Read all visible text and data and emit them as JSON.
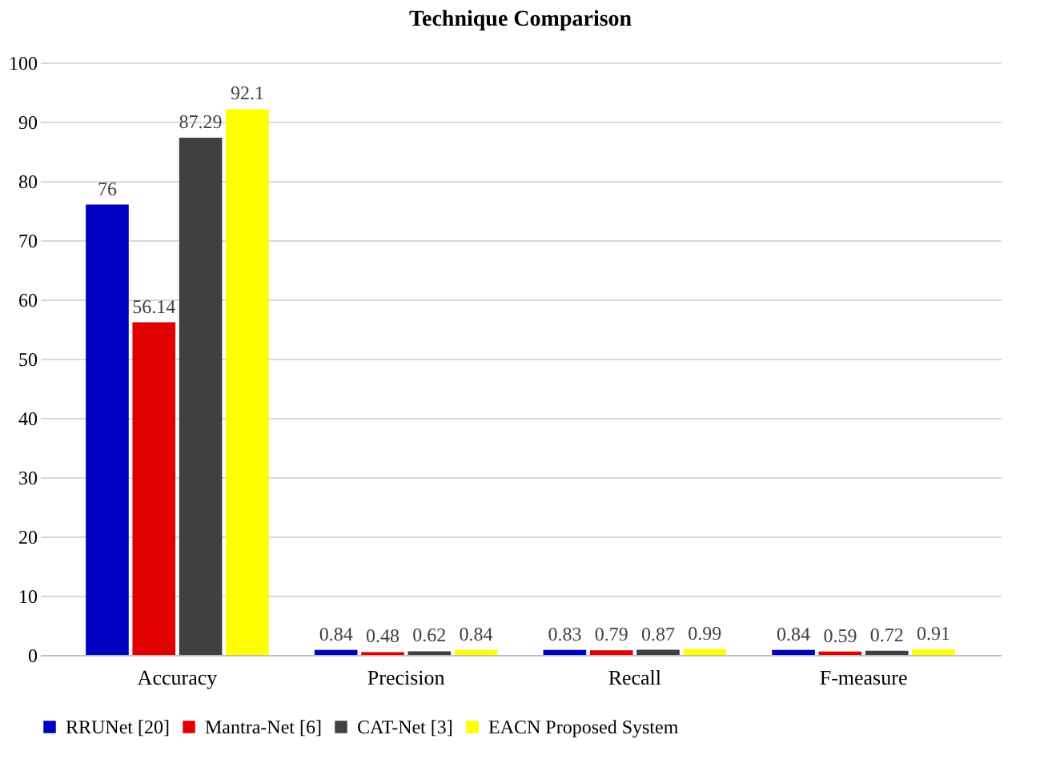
{
  "chart_data": {
    "type": "bar",
    "title": "Technique Comparison",
    "categories": [
      "Accuracy",
      "Precision",
      "Recall",
      "F-measure"
    ],
    "series": [
      {
        "name": "RRUNet [20]",
        "color": "#0000c0",
        "values": [
          76,
          0.84,
          0.83,
          0.84
        ]
      },
      {
        "name": "Mantra-Net [6]",
        "color": "#e00000",
        "values": [
          56.14,
          0.48,
          0.79,
          0.59
        ]
      },
      {
        "name": "CAT-Net [3]",
        "color": "#404040",
        "values": [
          87.29,
          0.62,
          0.87,
          0.72
        ]
      },
      {
        "name": "EACN Proposed System",
        "color": "#ffff00",
        "values": [
          92.1,
          0.84,
          0.99,
          0.91
        ]
      }
    ],
    "ylim": [
      0,
      100
    ],
    "yticks": [
      0,
      10,
      20,
      30,
      40,
      50,
      60,
      70,
      80,
      90,
      100
    ],
    "grid": "y",
    "legend": "bottom",
    "data_labels": true
  }
}
